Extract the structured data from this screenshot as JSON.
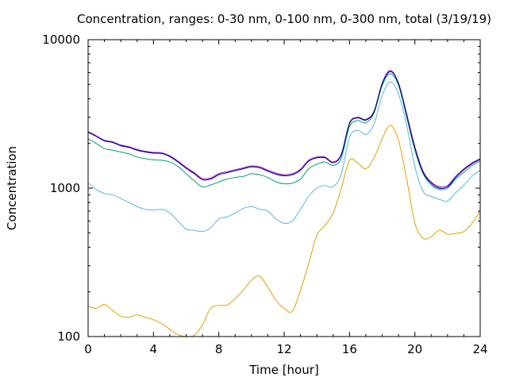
{
  "chart_data": {
    "type": "line",
    "title": "Concentration, ranges: 0-30 nm, 0-100 nm, 0-300 nm, total (3/19/19)",
    "xlabel": "Time [hour]",
    "ylabel": "Concentration",
    "xlim": [
      0,
      24
    ],
    "ylim": [
      100,
      10000
    ],
    "yscale": "log",
    "grid": false,
    "legend": "none",
    "xticks": [
      "0",
      "4",
      "8",
      "12",
      "16",
      "20",
      "24"
    ],
    "yticks": [
      "100",
      "1000",
      "10000"
    ],
    "series": [
      {
        "color": "#e69f00",
        "x": [
          0,
          0.5,
          1,
          1.5,
          2,
          2.5,
          3,
          3.5,
          4,
          4.5,
          5,
          5.5,
          6,
          6.5,
          7,
          7.5,
          8,
          8.5,
          9,
          9.5,
          10,
          10.5,
          11,
          11.5,
          12,
          12.5,
          13,
          13.5,
          14,
          14.5,
          15,
          15.5,
          16,
          16.5,
          17,
          17.5,
          18,
          18.5,
          19,
          19.5,
          20,
          20.5,
          21,
          21.5,
          22,
          22.5,
          23,
          23.5,
          24
        ],
        "y": [
          160,
          155,
          165,
          150,
          137,
          135,
          140,
          135,
          130,
          122,
          112,
          103,
          100,
          102,
          120,
          155,
          162,
          163,
          180,
          205,
          240,
          255,
          215,
          175,
          155,
          148,
          205,
          310,
          480,
          560,
          680,
          1000,
          1540,
          1480,
          1350,
          1600,
          2150,
          2650,
          2100,
          1150,
          580,
          460,
          470,
          520,
          490,
          495,
          510,
          580,
          700
        ]
      },
      {
        "color": "#56b4e9",
        "x": [
          0,
          0.5,
          1,
          1.5,
          2,
          2.5,
          3,
          3.5,
          4,
          4.5,
          5,
          5.5,
          6,
          6.5,
          7,
          7.5,
          8,
          8.5,
          9,
          9.5,
          10,
          10.5,
          11,
          11.5,
          12,
          12.5,
          13,
          13.5,
          14,
          14.5,
          15,
          15.5,
          16,
          16.5,
          17,
          17.5,
          18,
          18.5,
          19,
          19.5,
          20,
          20.5,
          21,
          21.5,
          22,
          22.5,
          23,
          23.5,
          24
        ],
        "y": [
          1080,
          980,
          920,
          900,
          850,
          800,
          750,
          720,
          710,
          720,
          680,
          600,
          530,
          520,
          510,
          540,
          620,
          640,
          680,
          730,
          750,
          720,
          700,
          620,
          580,
          600,
          720,
          880,
          1000,
          1040,
          1020,
          1250,
          2200,
          2450,
          2300,
          2700,
          4200,
          5200,
          4300,
          2650,
          1400,
          950,
          880,
          840,
          820,
          930,
          1050,
          1200,
          1320
        ]
      },
      {
        "color": "#009e73",
        "x": [
          0,
          0.5,
          1,
          1.5,
          2,
          2.5,
          3,
          3.5,
          4,
          4.5,
          5,
          5.5,
          6,
          6.5,
          7,
          7.5,
          8,
          8.5,
          9,
          9.5,
          10,
          10.5,
          11,
          11.5,
          12,
          12.5,
          13,
          13.5,
          14,
          14.5,
          15,
          15.5,
          16,
          16.5,
          17,
          17.5,
          18,
          18.5,
          19,
          19.5,
          20,
          20.5,
          21,
          21.5,
          22,
          22.5,
          23,
          23.5,
          24
        ],
        "y": [
          2150,
          2000,
          1850,
          1800,
          1750,
          1700,
          1620,
          1580,
          1550,
          1540,
          1500,
          1400,
          1250,
          1120,
          1020,
          1050,
          1100,
          1150,
          1180,
          1200,
          1250,
          1230,
          1180,
          1100,
          1070,
          1080,
          1150,
          1350,
          1450,
          1500,
          1420,
          1600,
          2600,
          2850,
          2750,
          3200,
          4900,
          5900,
          4900,
          3000,
          1800,
          1250,
          1050,
          980,
          1000,
          1150,
          1280,
          1420,
          1520
        ]
      },
      {
        "color": "#9400d3",
        "x": [
          0,
          0.5,
          1,
          1.5,
          2,
          2.5,
          3,
          3.5,
          4,
          4.5,
          5,
          5.5,
          6,
          6.5,
          7,
          7.5,
          8,
          8.5,
          9,
          9.5,
          10,
          10.5,
          11,
          11.5,
          12,
          12.5,
          13,
          13.5,
          14,
          14.5,
          15,
          15.5,
          16,
          16.5,
          17,
          17.5,
          18,
          18.5,
          19,
          19.5,
          20,
          20.5,
          21,
          21.5,
          22,
          22.5,
          23,
          23.5,
          24
        ],
        "y": [
          2400,
          2250,
          2100,
          2050,
          1950,
          1900,
          1820,
          1770,
          1740,
          1730,
          1650,
          1520,
          1380,
          1270,
          1160,
          1170,
          1250,
          1290,
          1330,
          1370,
          1410,
          1390,
          1320,
          1260,
          1230,
          1250,
          1340,
          1540,
          1620,
          1620,
          1500,
          1700,
          2750,
          3000,
          2900,
          3300,
          5100,
          6200,
          5100,
          3150,
          1900,
          1300,
          1100,
          1020,
          1040,
          1200,
          1350,
          1480,
          1580
        ]
      },
      {
        "color": "#000080",
        "x": [
          0,
          0.5,
          1,
          1.5,
          2,
          2.5,
          3,
          3.5,
          4,
          4.5,
          5,
          5.5,
          6,
          6.5,
          7,
          7.5,
          8,
          8.5,
          9,
          9.5,
          10,
          10.5,
          11,
          11.5,
          12,
          12.5,
          13,
          13.5,
          14,
          14.5,
          15,
          15.5,
          16,
          16.5,
          17,
          17.5,
          18,
          18.5,
          19,
          19.5,
          20,
          20.5,
          21,
          21.5,
          22,
          22.5,
          23,
          23.5,
          24
        ],
        "y": [
          2380,
          2230,
          2080,
          2030,
          1930,
          1880,
          1800,
          1750,
          1720,
          1710,
          1630,
          1500,
          1360,
          1250,
          1140,
          1150,
          1230,
          1270,
          1310,
          1350,
          1390,
          1370,
          1300,
          1240,
          1210,
          1230,
          1320,
          1520,
          1600,
          1600,
          1480,
          1680,
          2720,
          2970,
          2870,
          3270,
          5050,
          6100,
          5050,
          3100,
          1870,
          1280,
          1080,
          1000,
          1020,
          1180,
          1330,
          1460,
          1560
        ]
      }
    ]
  }
}
